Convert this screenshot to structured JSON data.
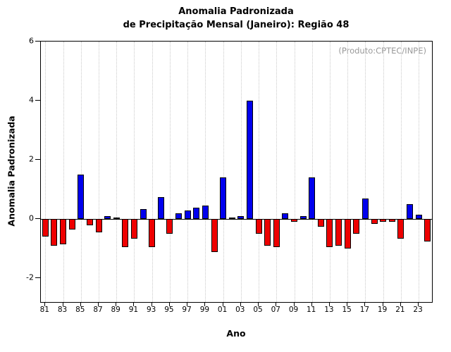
{
  "chart_data": {
    "type": "bar",
    "title_line1": "Anomalia Padronizada",
    "title_line2": "de Precipitação Mensal (Janeiro): Região 48",
    "annotation": "(Produto:CPTEC/INPE)",
    "xlabel": "Ano",
    "ylabel": "Anomalia Padronizada",
    "ylim": [
      -2.8,
      6
    ],
    "yticks": [
      -2,
      0,
      2,
      4,
      6
    ],
    "grid": "dotted-vertical",
    "legend": "none",
    "positive_color": "#0000ee",
    "negative_color": "#ee0000",
    "years": [
      "81",
      "82",
      "83",
      "84",
      "85",
      "86",
      "87",
      "88",
      "89",
      "90",
      "91",
      "92",
      "93",
      "94",
      "95",
      "96",
      "97",
      "98",
      "99",
      "00",
      "01",
      "02",
      "03",
      "04",
      "05",
      "06",
      "07",
      "08",
      "09",
      "10",
      "11",
      "12",
      "13",
      "14",
      "15",
      "16",
      "17",
      "18",
      "19",
      "20",
      "21",
      "22",
      "23",
      "24"
    ],
    "values": [
      -0.6,
      -0.9,
      -0.85,
      -0.35,
      1.5,
      -0.2,
      -0.45,
      0.1,
      0.05,
      -0.95,
      -0.65,
      0.35,
      -0.95,
      0.75,
      -0.5,
      0.2,
      0.3,
      0.4,
      0.45,
      -1.1,
      1.4,
      0.05,
      0.1,
      4.0,
      -0.5,
      -0.9,
      -0.95,
      0.2,
      -0.1,
      0.1,
      1.4,
      -0.25,
      -0.95,
      -0.9,
      -1.0,
      -0.5,
      0.7,
      -0.15,
      -0.1,
      -0.1,
      -0.65,
      0.5,
      0.15,
      -0.75
    ],
    "xticks": [
      "81",
      "83",
      "85",
      "87",
      "89",
      "91",
      "93",
      "95",
      "97",
      "99",
      "01",
      "03",
      "05",
      "07",
      "09",
      "11",
      "13",
      "15",
      "17",
      "19",
      "21",
      "23"
    ]
  }
}
